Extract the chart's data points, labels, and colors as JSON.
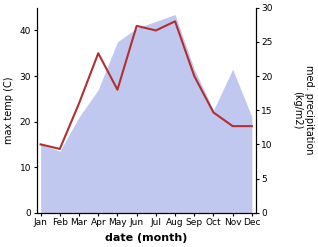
{
  "months": [
    "Jan",
    "Feb",
    "Mar",
    "Apr",
    "May",
    "Jun",
    "Jul",
    "Aug",
    "Sep",
    "Oct",
    "Nov",
    "Dec"
  ],
  "temperature": [
    15,
    14,
    24,
    35,
    27,
    41,
    40,
    42,
    30,
    22,
    19,
    19
  ],
  "precipitation": [
    10,
    9,
    14,
    18,
    25,
    27,
    28,
    29,
    21,
    15,
    21,
    14
  ],
  "temp_color": "#b03030",
  "precip_fill_color": "#c0c8f0",
  "precip_line_color": "#9090c0",
  "background_color": "#ffffff",
  "xlabel": "date (month)",
  "ylabel_left": "max temp (C)",
  "ylabel_right": "med. precipitation\n(kg/m2)",
  "ylim_left": [
    0,
    45
  ],
  "ylim_right": [
    0,
    30
  ],
  "yticks_left": [
    0,
    10,
    20,
    30,
    40
  ],
  "yticks_right": [
    0,
    5,
    10,
    15,
    20,
    25,
    30
  ],
  "label_fontsize": 7,
  "tick_fontsize": 6.5,
  "xlabel_fontsize": 8,
  "line_width": 1.5
}
